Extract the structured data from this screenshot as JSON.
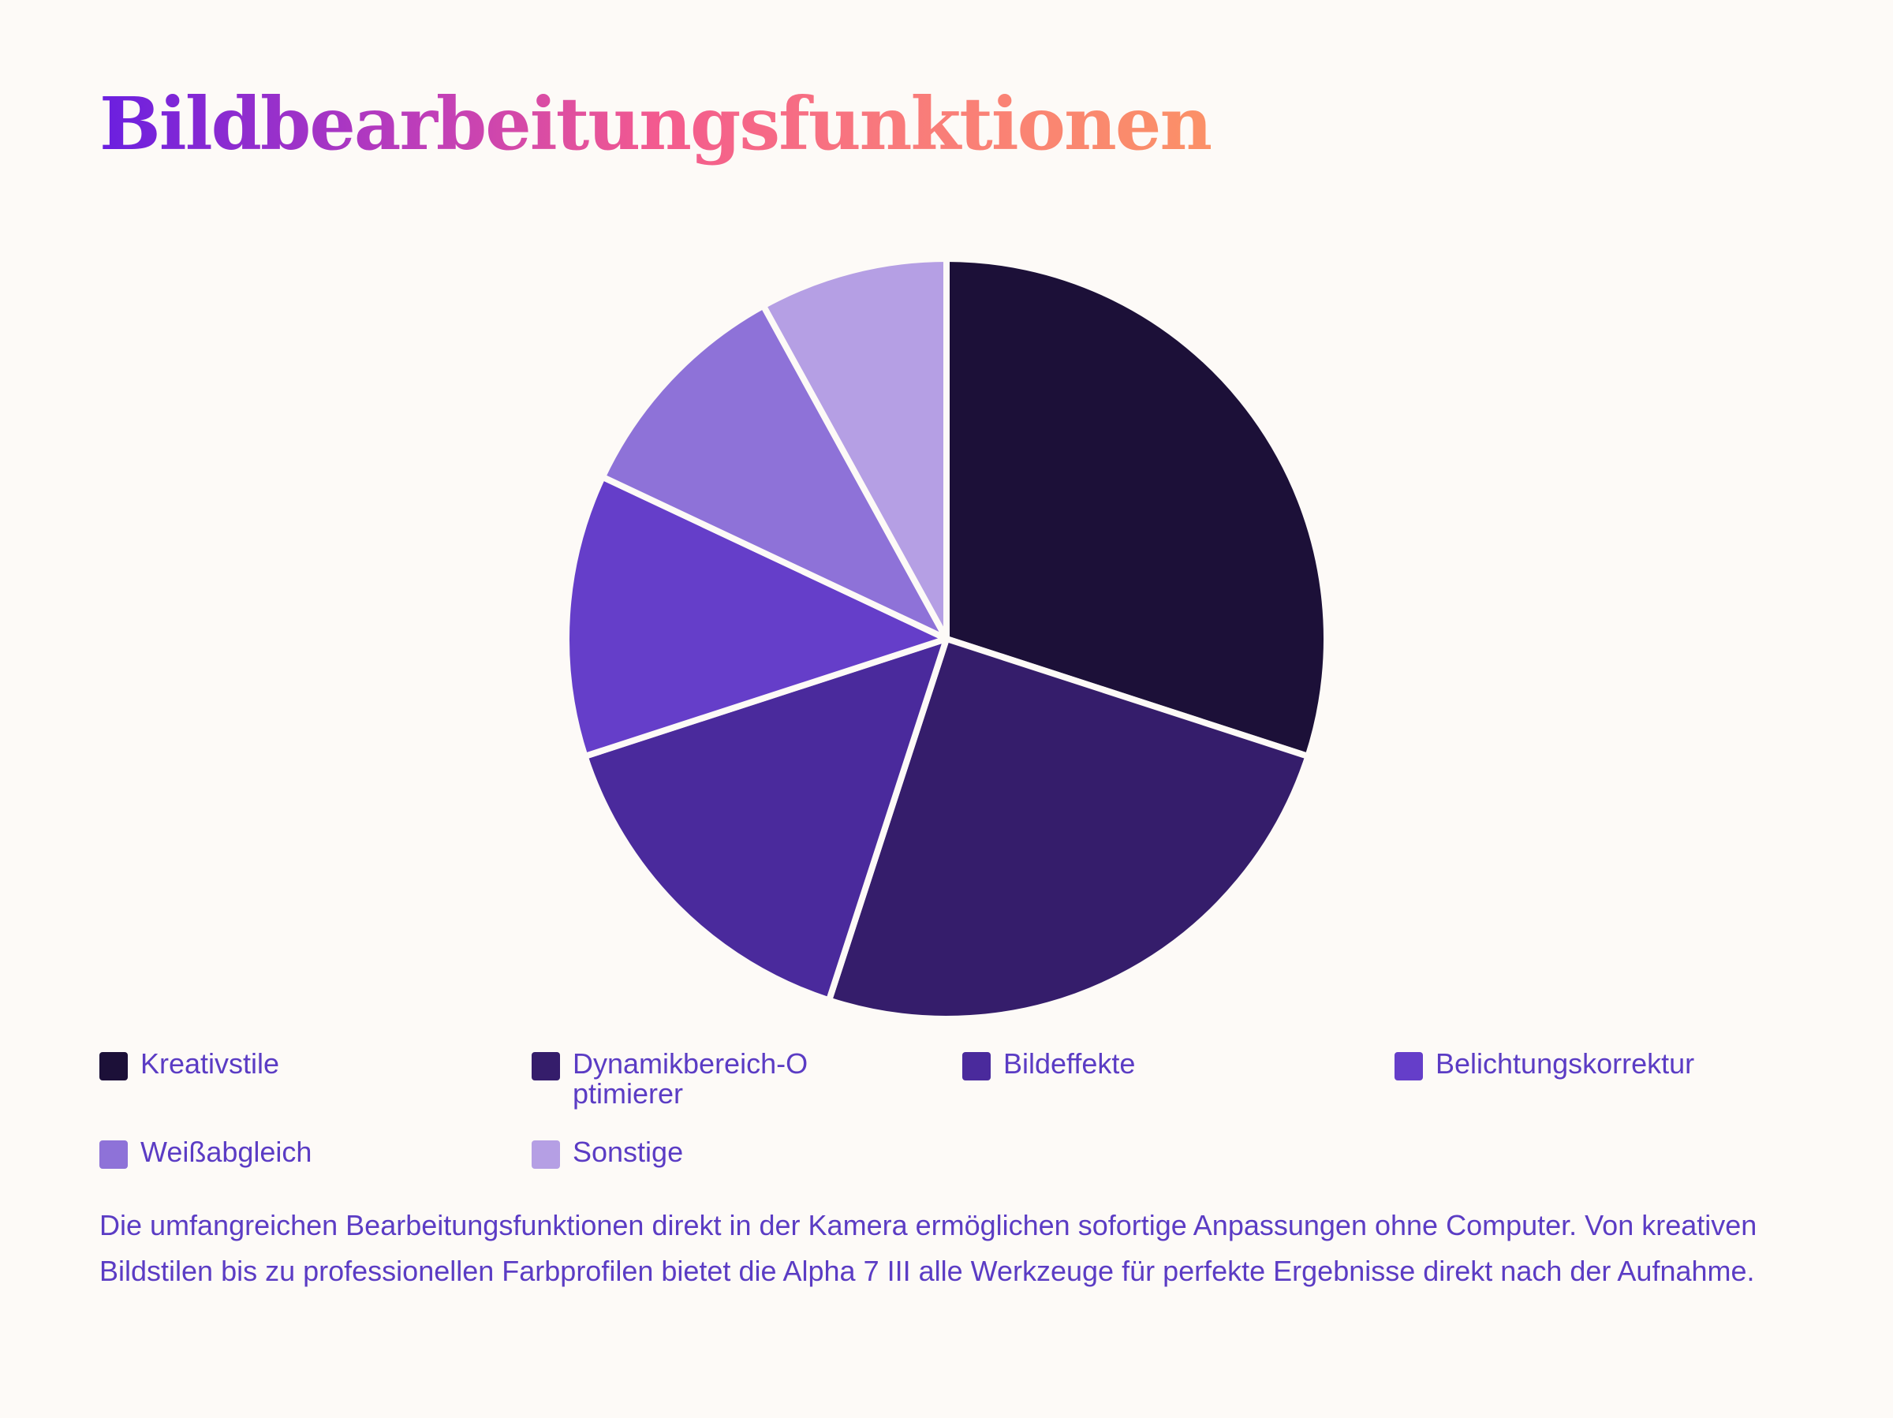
{
  "chart_data": {
    "type": "pie",
    "title": "Bildbearbeitungsfunktionen",
    "legend_position": "bottom",
    "slices": [
      {
        "label": "Kreativstile",
        "value": 30,
        "color": "#1c1038"
      },
      {
        "label": "Dynamikbereich-Optimierer",
        "value": 25,
        "color": "#351d6b"
      },
      {
        "label": "Bildeffekte",
        "value": 15,
        "color": "#4a2a9c"
      },
      {
        "label": "Belichtungskorrektur",
        "value": 12,
        "color": "#653ec9"
      },
      {
        "label": "Weißabgleich",
        "value": 10,
        "color": "#8e72d8"
      },
      {
        "label": "Sonstige",
        "value": 8,
        "color": "#b59fe4"
      }
    ]
  },
  "description": "Die umfangreichen Bearbeitungsfunktionen direkt in der Kamera ermöglichen sofortige Anpassungen ohne Computer. Von kreativen Bildstilen bis zu professionellen Farbprofilen bietet die Alpha 7 III alle Werkzeuge für perfekte Ergebnisse direkt nach der Aufnahme."
}
